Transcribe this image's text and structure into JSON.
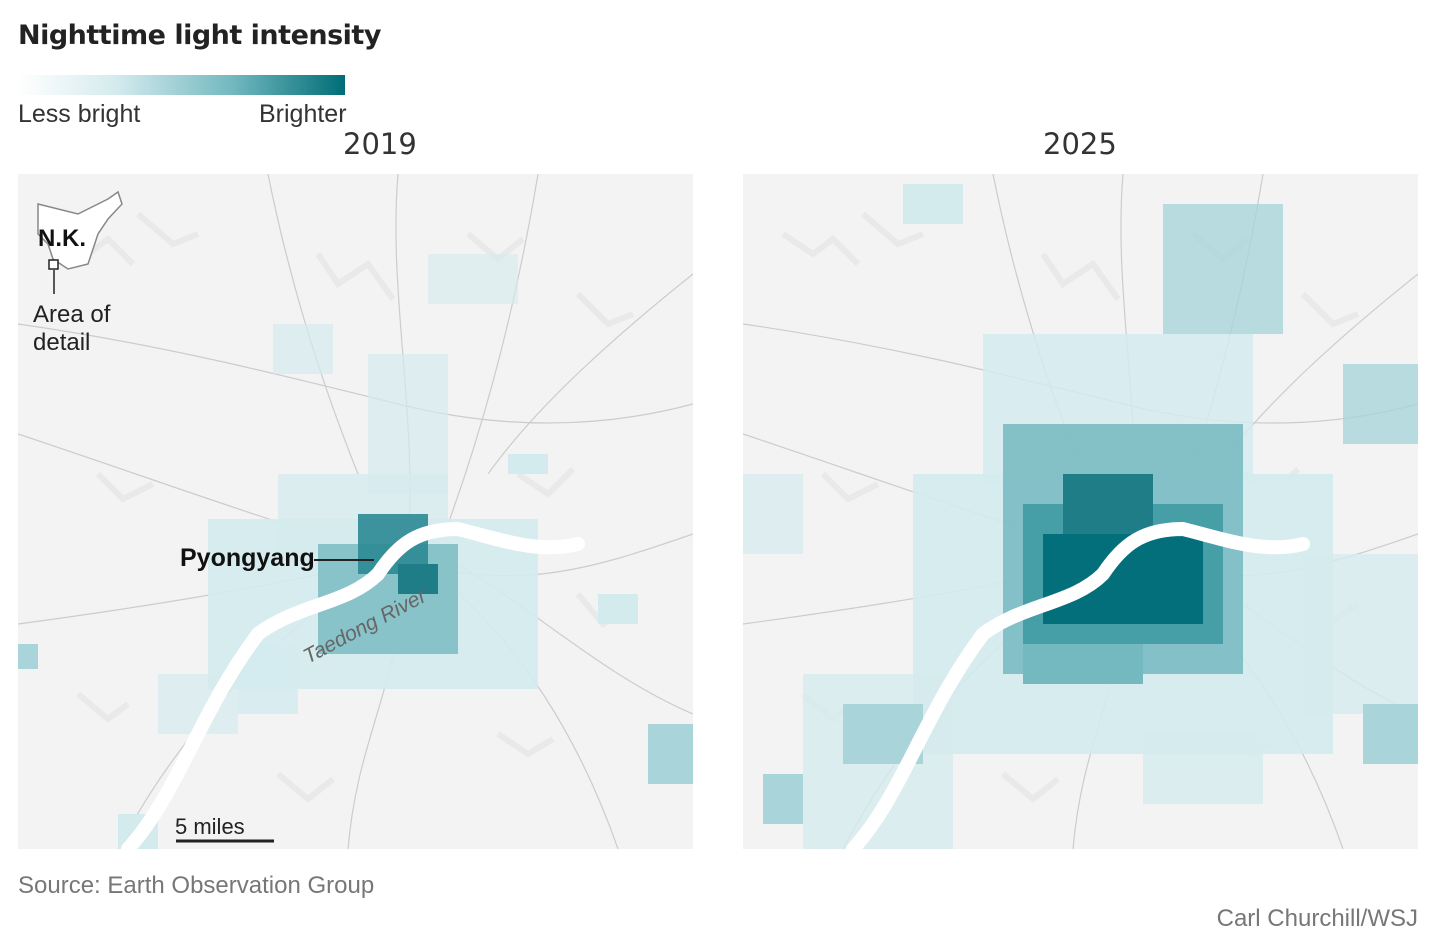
{
  "title": "Nighttime light intensity",
  "legend": {
    "low_label": "Less bright",
    "high_label": "Brighter",
    "colors": [
      "#ffffff",
      "#d4ebee",
      "#74b9c0",
      "#006d77"
    ]
  },
  "maps": [
    {
      "year": "2019",
      "inset": {
        "country_label": "N.K.",
        "area_label_line1": "Area of",
        "area_label_line2": "detail"
      },
      "city_label": "Pyongyang",
      "river_label": "Taedong River",
      "scale_label": "5 miles"
    },
    {
      "year": "2025"
    }
  ],
  "source": "Source: Earth Observation Group",
  "credit": "Carl Churchill/WSJ",
  "colors": {
    "light_dark": "#006d77",
    "light_mid": "#74b9c0",
    "land": "#f3f3f3",
    "road": "#c8c8c8",
    "river": "#ffffff"
  }
}
